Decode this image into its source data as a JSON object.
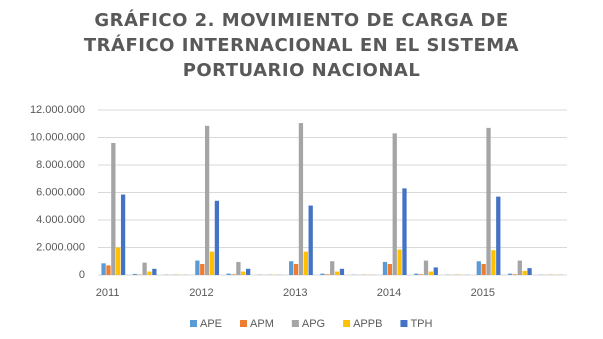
{
  "chart_data": {
    "type": "bar",
    "title": "GRÁFICO 2. MOVIMIENTO DE CARGA DE TRÁFICO INTERNACIONAL EN EL SISTEMA PORTUARIO NACIONAL",
    "categories": [
      "2011",
      null,
      null,
      "2012",
      null,
      null,
      "2013",
      null,
      null,
      "2014",
      null,
      null,
      "2015",
      null,
      null
    ],
    "series": [
      {
        "name": "APE",
        "color": "#5b9bd5",
        "values": [
          850000,
          80000,
          20000,
          1050000,
          100000,
          20000,
          1000000,
          100000,
          20000,
          950000,
          100000,
          20000,
          1000000,
          100000,
          20000
        ]
      },
      {
        "name": "APM",
        "color": "#ed7d31",
        "values": [
          700000,
          30000,
          10000,
          800000,
          50000,
          10000,
          800000,
          50000,
          10000,
          800000,
          50000,
          10000,
          800000,
          50000,
          10000
        ]
      },
      {
        "name": "APG",
        "color": "#a5a5a5",
        "values": [
          9600000,
          900000,
          30000,
          10850000,
          950000,
          30000,
          11050000,
          1000000,
          30000,
          10300000,
          1050000,
          30000,
          10700000,
          1050000,
          30000
        ]
      },
      {
        "name": "APPB",
        "color": "#ffc000",
        "values": [
          2000000,
          250000,
          20000,
          1700000,
          250000,
          20000,
          1700000,
          250000,
          20000,
          1850000,
          250000,
          20000,
          1800000,
          300000,
          20000
        ]
      },
      {
        "name": "TPH",
        "color": "#4472c4",
        "values": [
          5850000,
          450000,
          10000,
          5400000,
          450000,
          10000,
          5050000,
          450000,
          10000,
          6300000,
          550000,
          10000,
          5700000,
          500000,
          10000
        ]
      }
    ],
    "ylim": [
      0,
      12000000
    ],
    "yticks": [
      0,
      {
        "value": 2000000,
        "label": "2.000.000"
      },
      {
        "value": 4000000,
        "label": "4.000.000"
      },
      {
        "value": 6000000,
        "label": "6.000.000"
      },
      {
        "value": 8000000,
        "label": "8.000.000"
      },
      {
        "value": 10000000,
        "label": "10.000.000"
      },
      {
        "value": 12000000,
        "label": "12.000.000"
      }
    ],
    "grid": true,
    "legend": "bottom"
  }
}
